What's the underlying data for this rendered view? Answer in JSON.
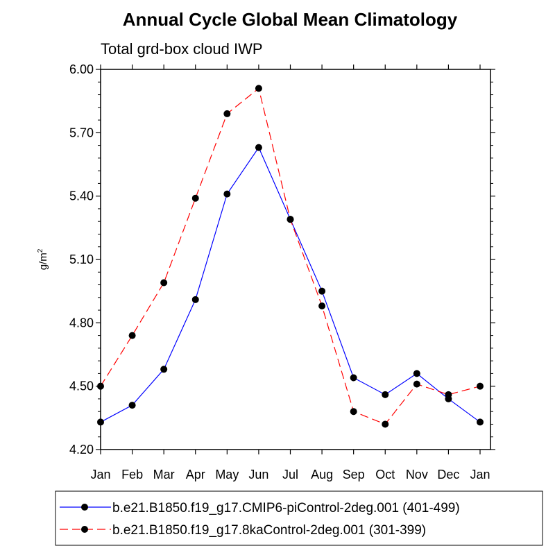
{
  "chart_data": {
    "type": "line",
    "title": "Annual Cycle Global Mean Climatology",
    "subtitle": "Total grd-box cloud IWP",
    "ylabel_base": "g/m",
    "ylabel_sup": "2",
    "ylim": [
      4.2,
      6.0
    ],
    "yticks": [
      "4.20",
      "4.50",
      "4.80",
      "5.10",
      "5.40",
      "5.70",
      "6.00"
    ],
    "categories": [
      "Jan",
      "Feb",
      "Mar",
      "Apr",
      "May",
      "Jun",
      "Jul",
      "Aug",
      "Sep",
      "Oct",
      "Nov",
      "Dec",
      "Jan"
    ],
    "grid": false,
    "legend_position": "bottom",
    "series": [
      {
        "name": "b.e21.B1850.f19_g17.CMIP6-piControl-2deg.001 (401-499)",
        "color": "#0000ff",
        "dash": "solid",
        "values": [
          4.33,
          4.41,
          4.58,
          4.91,
          5.41,
          5.63,
          5.29,
          4.95,
          4.54,
          4.46,
          4.56,
          4.44,
          4.33
        ]
      },
      {
        "name": "b.e21.B1850.f19_g17.8kaControl-2deg.001 (301-399)",
        "color": "#ff0000",
        "dash": "dashed",
        "values": [
          4.5,
          4.74,
          4.99,
          5.39,
          5.79,
          5.91,
          5.29,
          4.88,
          4.38,
          4.32,
          4.51,
          4.46,
          4.5
        ]
      }
    ]
  }
}
